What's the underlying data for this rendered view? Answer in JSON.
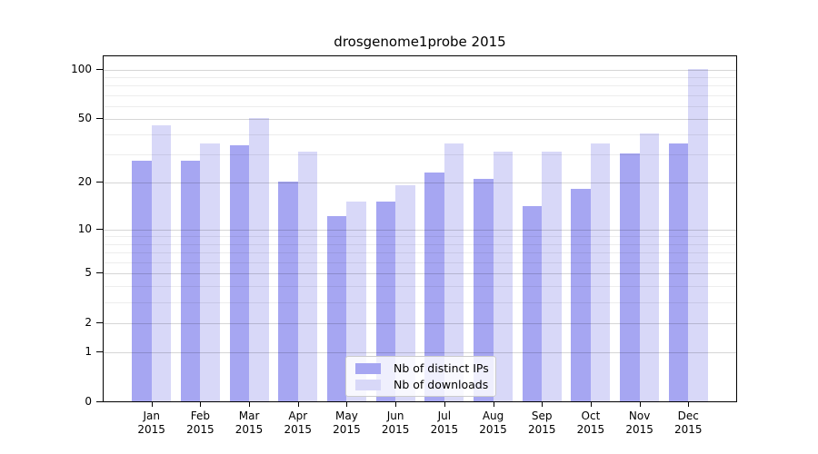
{
  "title": "drosgenome1probe 2015",
  "colors": {
    "ips": "#a6a6f2",
    "downloads": "#d8d8f8",
    "spine": "#000000",
    "grid_major": "rgba(0,0,0,0.16)",
    "grid_minor": "rgba(0,0,0,0.07)"
  },
  "legend": {
    "items": [
      {
        "label": "Nb of distinct IPs",
        "color_key": "ips"
      },
      {
        "label": "Nb of downloads",
        "color_key": "downloads"
      }
    ]
  },
  "chart_data": {
    "type": "bar",
    "title": "drosgenome1probe 2015",
    "categories": [
      "Jan 2015",
      "Feb 2015",
      "Mar 2015",
      "Apr 2015",
      "May 2015",
      "Jun 2015",
      "Jul 2015",
      "Aug 2015",
      "Sep 2015",
      "Oct 2015",
      "Nov 2015",
      "Dec 2015"
    ],
    "x_tick_line1": [
      "Jan",
      "Feb",
      "Mar",
      "Apr",
      "May",
      "Jun",
      "Jul",
      "Aug",
      "Sep",
      "Oct",
      "Nov",
      "Dec"
    ],
    "x_tick_line2": [
      "2015",
      "2015",
      "2015",
      "2015",
      "2015",
      "2015",
      "2015",
      "2015",
      "2015",
      "2015",
      "2015",
      "2015"
    ],
    "series": [
      {
        "name": "Nb of distinct IPs",
        "values": [
          27,
          27,
          34,
          20,
          12,
          15,
          23,
          21,
          14,
          18,
          30,
          35
        ]
      },
      {
        "name": "Nb of downloads",
        "values": [
          45,
          35,
          50,
          31,
          15,
          19,
          35,
          31,
          31,
          35,
          40,
          100
        ]
      }
    ],
    "xlabel": "",
    "ylabel": "",
    "yscale": "log1p",
    "ylim": [
      0,
      121
    ],
    "ytick_values": [
      100,
      50,
      20,
      10,
      5,
      2,
      1,
      0
    ],
    "ytick_labels": [
      "100",
      "50",
      "20",
      "10",
      "5",
      "2",
      "1",
      "0"
    ],
    "minor_gridline_values": [
      3,
      4,
      6,
      7,
      8,
      9,
      30,
      40,
      60,
      70,
      80,
      90
    ],
    "grid": "on",
    "legend_position": "lower center"
  }
}
